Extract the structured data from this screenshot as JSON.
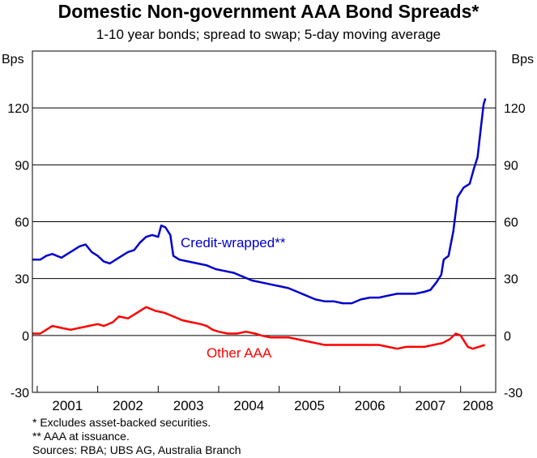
{
  "chart_data": {
    "type": "line",
    "title": "Domestic Non-government AAA Bond Spreads*",
    "subtitle": "1-10 year bonds; spread to swap; 5-day moving average",
    "ylabel_left": "Bps",
    "ylabel_right": "Bps",
    "ylim": [
      -30,
      150
    ],
    "yticks": [
      -30,
      0,
      30,
      60,
      90,
      120
    ],
    "ytick_labels": [
      "-30",
      "0",
      "30",
      "60",
      "90",
      "120"
    ],
    "xlim": [
      2000.92,
      2008.58
    ],
    "x_year_labels": [
      "2001",
      "2002",
      "2003",
      "2004",
      "2005",
      "2006",
      "2007",
      "2008"
    ],
    "series": [
      {
        "name": "Credit-wrapped**",
        "color": "#0000cc",
        "points": [
          [
            2000.92,
            40
          ],
          [
            2001.05,
            40
          ],
          [
            2001.15,
            42
          ],
          [
            2001.25,
            43
          ],
          [
            2001.4,
            41
          ],
          [
            2001.55,
            44
          ],
          [
            2001.7,
            47
          ],
          [
            2001.8,
            48
          ],
          [
            2001.9,
            44
          ],
          [
            2002.0,
            42
          ],
          [
            2002.1,
            39
          ],
          [
            2002.2,
            38
          ],
          [
            2002.3,
            40
          ],
          [
            2002.4,
            42
          ],
          [
            2002.5,
            44
          ],
          [
            2002.6,
            45
          ],
          [
            2002.7,
            49
          ],
          [
            2002.8,
            52
          ],
          [
            2002.9,
            53
          ],
          [
            2003.0,
            52
          ],
          [
            2003.05,
            58
          ],
          [
            2003.12,
            57
          ],
          [
            2003.2,
            53
          ],
          [
            2003.25,
            42
          ],
          [
            2003.35,
            40
          ],
          [
            2003.5,
            39
          ],
          [
            2003.65,
            38
          ],
          [
            2003.8,
            37
          ],
          [
            2003.95,
            35
          ],
          [
            2004.1,
            34
          ],
          [
            2004.25,
            33
          ],
          [
            2004.4,
            31
          ],
          [
            2004.55,
            29
          ],
          [
            2004.7,
            28
          ],
          [
            2004.85,
            27
          ],
          [
            2005.0,
            26
          ],
          [
            2005.15,
            25
          ],
          [
            2005.3,
            23
          ],
          [
            2005.45,
            21
          ],
          [
            2005.6,
            19
          ],
          [
            2005.75,
            18
          ],
          [
            2005.9,
            18
          ],
          [
            2006.05,
            17
          ],
          [
            2006.2,
            17
          ],
          [
            2006.35,
            19
          ],
          [
            2006.5,
            20
          ],
          [
            2006.65,
            20
          ],
          [
            2006.8,
            21
          ],
          [
            2006.95,
            22
          ],
          [
            2007.1,
            22
          ],
          [
            2007.25,
            22
          ],
          [
            2007.4,
            23
          ],
          [
            2007.5,
            24
          ],
          [
            2007.6,
            28
          ],
          [
            2007.68,
            32
          ],
          [
            2007.72,
            40
          ],
          [
            2007.8,
            42
          ],
          [
            2007.88,
            55
          ],
          [
            2007.95,
            73
          ],
          [
            2008.05,
            78
          ],
          [
            2008.15,
            80
          ],
          [
            2008.22,
            88
          ],
          [
            2008.28,
            94
          ],
          [
            2008.33,
            108
          ],
          [
            2008.38,
            122
          ],
          [
            2008.41,
            125
          ]
        ]
      },
      {
        "name": "Other AAA",
        "color": "#ff0000",
        "points": [
          [
            2000.92,
            1
          ],
          [
            2001.05,
            1
          ],
          [
            2001.15,
            3
          ],
          [
            2001.25,
            5
          ],
          [
            2001.4,
            4
          ],
          [
            2001.55,
            3
          ],
          [
            2001.7,
            4
          ],
          [
            2001.85,
            5
          ],
          [
            2002.0,
            6
          ],
          [
            2002.1,
            5
          ],
          [
            2002.25,
            7
          ],
          [
            2002.35,
            10
          ],
          [
            2002.5,
            9
          ],
          [
            2002.65,
            12
          ],
          [
            2002.8,
            15
          ],
          [
            2002.95,
            13
          ],
          [
            2003.1,
            12
          ],
          [
            2003.25,
            10
          ],
          [
            2003.4,
            8
          ],
          [
            2003.55,
            7
          ],
          [
            2003.7,
            6
          ],
          [
            2003.8,
            5
          ],
          [
            2003.9,
            3
          ],
          [
            2004.0,
            2
          ],
          [
            2004.15,
            1
          ],
          [
            2004.3,
            1
          ],
          [
            2004.45,
            2
          ],
          [
            2004.6,
            1
          ],
          [
            2004.7,
            0
          ],
          [
            2004.85,
            -1
          ],
          [
            2005.0,
            -1
          ],
          [
            2005.15,
            -1
          ],
          [
            2005.3,
            -2
          ],
          [
            2005.45,
            -3
          ],
          [
            2005.6,
            -4
          ],
          [
            2005.75,
            -5
          ],
          [
            2005.9,
            -5
          ],
          [
            2006.05,
            -5
          ],
          [
            2006.2,
            -5
          ],
          [
            2006.35,
            -5
          ],
          [
            2006.5,
            -5
          ],
          [
            2006.65,
            -5
          ],
          [
            2006.8,
            -6
          ],
          [
            2006.95,
            -7
          ],
          [
            2007.1,
            -6
          ],
          [
            2007.25,
            -6
          ],
          [
            2007.4,
            -6
          ],
          [
            2007.55,
            -5
          ],
          [
            2007.7,
            -4
          ],
          [
            2007.82,
            -2
          ],
          [
            2007.92,
            1
          ],
          [
            2008.0,
            0
          ],
          [
            2008.06,
            -3
          ],
          [
            2008.12,
            -6
          ],
          [
            2008.2,
            -7
          ],
          [
            2008.3,
            -6
          ],
          [
            2008.4,
            -5
          ]
        ]
      }
    ],
    "annotations": [
      {
        "text": "Credit-wrapped**",
        "series": "Credit-wrapped**"
      },
      {
        "text": "Other AAA",
        "series": "Other AAA"
      }
    ]
  },
  "notes": [
    "*  Excludes asset-backed securities.",
    "** AAA at issuance.",
    "Sources: RBA; UBS AG, Australia Branch"
  ]
}
